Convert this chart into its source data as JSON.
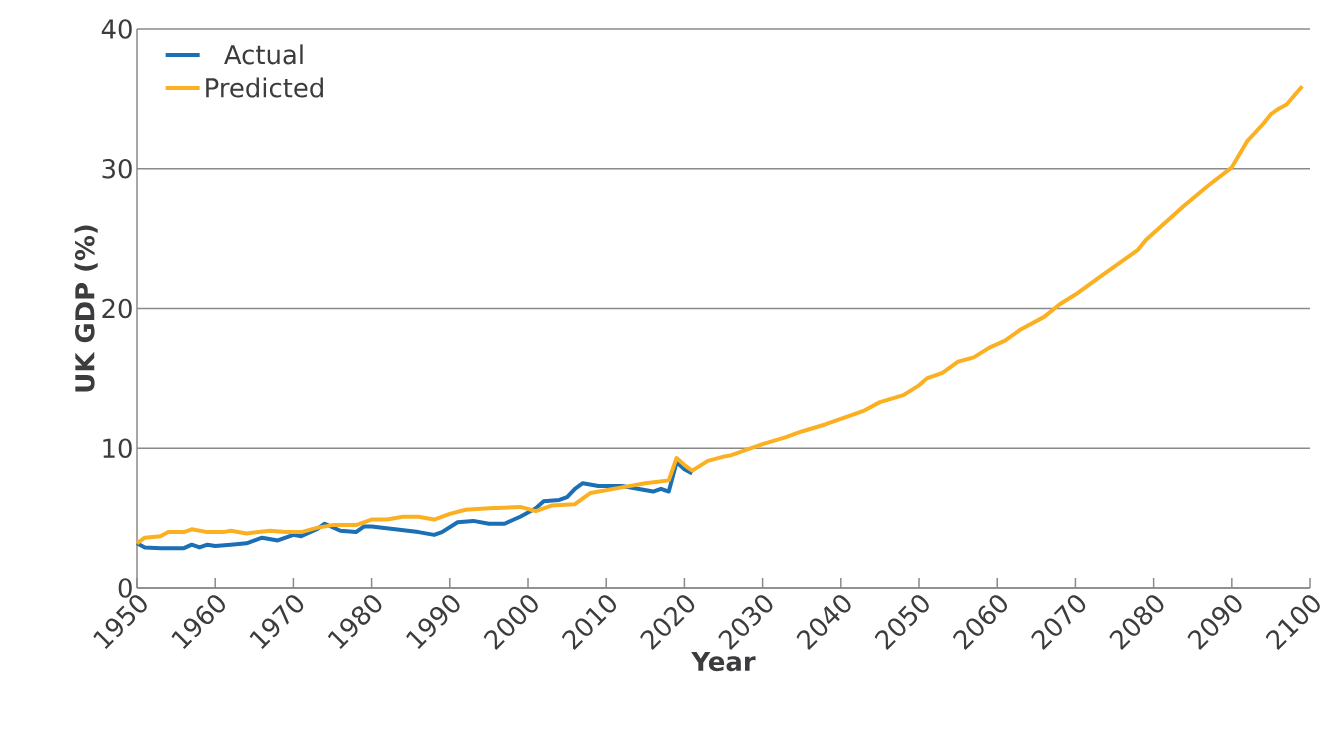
{
  "chart_data": {
    "type": "line",
    "xlabel": "Year",
    "ylabel": "UK GDP (%)",
    "xlim": [
      1950,
      2100
    ],
    "ylim": [
      0,
      40
    ],
    "xticks": [
      1950,
      1960,
      1970,
      1980,
      1990,
      2000,
      2010,
      2020,
      2030,
      2040,
      2050,
      2060,
      2070,
      2080,
      2090,
      2100
    ],
    "yticks": [
      0,
      10,
      20,
      30,
      40
    ],
    "grid": "y",
    "legend": "top left",
    "series": [
      {
        "name": "Actual",
        "color": "#1a6fb5",
        "x": [
          1950,
          1951,
          1953,
          1955,
          1956,
          1957,
          1958,
          1959,
          1960,
          1962,
          1964,
          1966,
          1968,
          1970,
          1971,
          1973,
          1974,
          1976,
          1978,
          1979,
          1980,
          1983,
          1986,
          1988,
          1989,
          1991,
          1993,
          1995,
          1997,
          1999,
          2001,
          2002,
          2004,
          2005,
          2006,
          2007,
          2009,
          2012,
          2014,
          2016,
          2017,
          2018,
          2019,
          2020,
          2021
        ],
        "values": [
          3.2,
          2.9,
          2.85,
          2.85,
          2.85,
          3.1,
          2.9,
          3.1,
          3.0,
          3.1,
          3.2,
          3.6,
          3.4,
          3.8,
          3.7,
          4.2,
          4.6,
          4.1,
          4.0,
          4.4,
          4.4,
          4.2,
          4.0,
          3.8,
          4.0,
          4.7,
          4.8,
          4.6,
          4.6,
          5.1,
          5.7,
          6.2,
          6.3,
          6.5,
          7.1,
          7.5,
          7.3,
          7.3,
          7.1,
          6.9,
          7.1,
          6.9,
          9.0,
          8.5,
          8.2
        ]
      },
      {
        "name": "Predicted",
        "color": "#fbb021",
        "x": [
          1950,
          1951,
          1953,
          1954,
          1956,
          1957,
          1959,
          1961,
          1962,
          1964,
          1967,
          1969,
          1971,
          1973,
          1975,
          1978,
          1980,
          1982,
          1984,
          1986,
          1988,
          1990,
          1992,
          1995,
          1999,
          2001,
          2003,
          2006,
          2008,
          2012,
          2015,
          2018,
          2019,
          2020,
          2021,
          2023,
          2025,
          2026,
          2028,
          2030,
          2033,
          2035,
          2038,
          2040,
          2043,
          2045,
          2048,
          2050,
          2051,
          2053,
          2055,
          2057,
          2059,
          2061,
          2063,
          2066,
          2068,
          2070,
          2073,
          2076,
          2078,
          2079,
          2081,
          2084,
          2087,
          2090,
          2092,
          2094,
          2095,
          2096,
          2097,
          2099
        ],
        "values": [
          3.2,
          3.6,
          3.7,
          4.0,
          4.0,
          4.2,
          4.0,
          4.0,
          4.1,
          3.9,
          4.1,
          4.0,
          4.0,
          4.3,
          4.5,
          4.5,
          4.9,
          4.9,
          5.1,
          5.1,
          4.9,
          5.3,
          5.6,
          5.7,
          5.8,
          5.5,
          5.9,
          6.0,
          6.8,
          7.2,
          7.5,
          7.7,
          9.3,
          8.8,
          8.4,
          9.1,
          9.4,
          9.5,
          9.9,
          10.3,
          10.8,
          11.2,
          11.7,
          12.1,
          12.7,
          13.3,
          13.8,
          14.5,
          15.0,
          15.4,
          16.2,
          16.5,
          17.2,
          17.7,
          18.5,
          19.4,
          20.3,
          21.0,
          22.2,
          23.4,
          24.2,
          24.9,
          25.9,
          27.4,
          28.8,
          30.1,
          32.0,
          33.2,
          33.9,
          34.3,
          34.6,
          35.9
        ]
      }
    ]
  }
}
